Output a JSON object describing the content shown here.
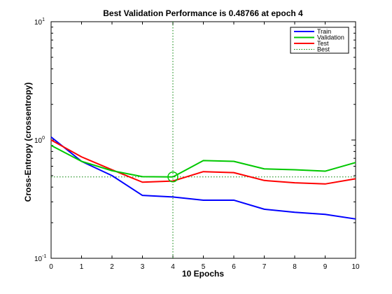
{
  "chart_data": {
    "type": "line",
    "title": "Best Validation Performance is 0.48766 at epoch 4",
    "xlabel": "10 Epochs",
    "ylabel": "Cross-Entropy  (crossentropy)",
    "yscale": "log",
    "xlim": [
      0,
      10
    ],
    "ylim": [
      0.1,
      10
    ],
    "x": [
      0,
      1,
      2,
      3,
      4,
      5,
      6,
      7,
      8,
      9,
      10
    ],
    "x_ticks": [
      "0",
      "1",
      "2",
      "3",
      "4",
      "5",
      "6",
      "7",
      "8",
      "9",
      "10"
    ],
    "y_ticks": [
      {
        "value": 0.1,
        "base": "10",
        "exp": "-1"
      },
      {
        "value": 1,
        "base": "10",
        "exp": "0"
      },
      {
        "value": 10,
        "base": "10",
        "exp": "1"
      }
    ],
    "grid": false,
    "legend_position": "top-right",
    "series": [
      {
        "name": "Train",
        "color": "#0000ff",
        "style": "solid",
        "values": [
          1.06,
          0.66,
          0.5,
          0.34,
          0.33,
          0.31,
          0.31,
          0.26,
          0.245,
          0.235,
          0.215
        ]
      },
      {
        "name": "Validation",
        "color": "#00c800",
        "style": "solid",
        "values": [
          0.9,
          0.66,
          0.55,
          0.49,
          0.48766,
          0.67,
          0.66,
          0.57,
          0.56,
          0.545,
          0.645
        ]
      },
      {
        "name": "Test",
        "color": "#ff0000",
        "style": "solid",
        "values": [
          1.0,
          0.72,
          0.56,
          0.44,
          0.45,
          0.54,
          0.53,
          0.455,
          0.435,
          0.425,
          0.47
        ]
      },
      {
        "name": "Best",
        "color": "#008000",
        "style": "dotted"
      }
    ],
    "best": {
      "epoch": 4,
      "value": 0.48766
    }
  }
}
